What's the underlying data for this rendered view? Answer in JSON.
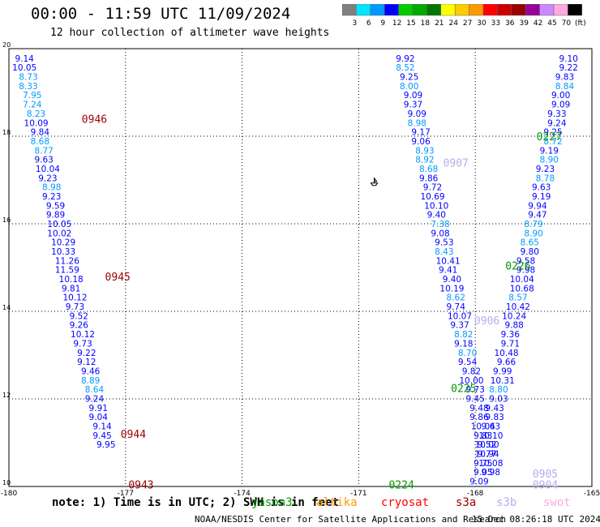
{
  "header": {
    "title": "00:00 - 11:59 UTC 11/09/2024",
    "subtitle": "12 hour collection of altimeter wave heights"
  },
  "legend": {
    "thresholds": [
      "3",
      "6",
      "9",
      "12",
      "15",
      "18",
      "21",
      "24",
      "27",
      "30",
      "33",
      "36",
      "39",
      "42",
      "45",
      "70",
      "(ft)"
    ],
    "colors": [
      "#7f7f7f",
      "#00e5ff",
      "#0099ff",
      "#0000ff",
      "#00cc00",
      "#00aa00",
      "#007700",
      "#ffff00",
      "#ffcc00",
      "#ff9900",
      "#ff0000",
      "#cc0000",
      "#990000",
      "#990099",
      "#cc88ff",
      "#ffaadd",
      "#000000"
    ]
  },
  "footer": {
    "note": "note: 1) Time is in UTC; 2) SWH is in feet",
    "satellites": [
      {
        "name": "jason3",
        "color": "#009900"
      },
      {
        "name": "altika",
        "color": "#ff9900"
      },
      {
        "name": "cryosat",
        "color": "#ff0000"
      },
      {
        "name": "s3a",
        "color": "#990000"
      },
      {
        "name": "s3b",
        "color": "#bbaaee"
      },
      {
        "name": "swot",
        "color": "#ffaadd"
      }
    ],
    "credit": "NOAA/NESDIS Center for Satellite Applications and Research",
    "timestamp": "15 Dec 08:26:18 UTC 2024"
  },
  "chart_data": {
    "type": "scatter",
    "xlim": [
      -180,
      -165
    ],
    "ylim": [
      10,
      20
    ],
    "x_ticks": [
      "-180",
      "-177",
      "-174",
      "-171",
      "-168",
      "-165"
    ],
    "y_ticks": [
      "10",
      "12",
      "14",
      "16",
      "18",
      "20"
    ],
    "grid": true,
    "pass_labels": [
      {
        "label": "0946",
        "x": -177.8,
        "y": 18.4,
        "color": "#990000"
      },
      {
        "label": "0945",
        "x": -177.2,
        "y": 14.8,
        "color": "#990000"
      },
      {
        "label": "0944",
        "x": -176.8,
        "y": 11.2,
        "color": "#990000"
      },
      {
        "label": "0943",
        "x": -176.6,
        "y": 10.05,
        "color": "#990000"
      },
      {
        "label": "0907",
        "x": -168.5,
        "y": 17.4,
        "color": "#bbaaee"
      },
      {
        "label": "0906",
        "x": -167.7,
        "y": 13.8,
        "color": "#bbaaee"
      },
      {
        "label": "0905",
        "x": -166.2,
        "y": 10.3,
        "color": "#bbaaee"
      },
      {
        "label": "0904",
        "x": -166.2,
        "y": 10.05,
        "color": "#bbaaee"
      },
      {
        "label": "0227",
        "x": -166.1,
        "y": 18.0,
        "color": "#009900"
      },
      {
        "label": "0226",
        "x": -166.9,
        "y": 15.05,
        "color": "#009900"
      },
      {
        "label": "0225",
        "x": -168.3,
        "y": 12.25,
        "color": "#009900"
      },
      {
        "label": "0224",
        "x": -169.9,
        "y": 10.05,
        "color": "#009900"
      }
    ],
    "marker": {
      "symbol": "boat",
      "x": -170.6,
      "y": 16.95
    },
    "series": [
      {
        "name": "s3a",
        "points": [
          {
            "x": -179.6,
            "y": 19.78,
            "v": 9.14
          },
          {
            "x": -179.6,
            "y": 19.57,
            "v": 10.05
          },
          {
            "x": -179.5,
            "y": 19.36,
            "v": 8.73
          },
          {
            "x": -179.5,
            "y": 19.15,
            "v": 8.33
          },
          {
            "x": -179.4,
            "y": 18.94,
            "v": 7.95
          },
          {
            "x": -179.4,
            "y": 18.73,
            "v": 7.24
          },
          {
            "x": -179.3,
            "y": 18.52,
            "v": 8.23
          },
          {
            "x": -179.3,
            "y": 18.31,
            "v": 10.09
          },
          {
            "x": -179.2,
            "y": 18.1,
            "v": 9.84
          },
          {
            "x": -179.2,
            "y": 17.89,
            "v": 8.68
          },
          {
            "x": -179.1,
            "y": 17.68,
            "v": 8.77
          },
          {
            "x": -179.1,
            "y": 17.47,
            "v": 9.63
          },
          {
            "x": -179.0,
            "y": 17.26,
            "v": 10.04
          },
          {
            "x": -179.0,
            "y": 17.05,
            "v": 9.23
          },
          {
            "x": -178.9,
            "y": 16.84,
            "v": 8.98
          },
          {
            "x": -178.9,
            "y": 16.63,
            "v": 9.23
          },
          {
            "x": -178.8,
            "y": 16.42,
            "v": 9.59
          },
          {
            "x": -178.8,
            "y": 16.21,
            "v": 9.89
          },
          {
            "x": -178.7,
            "y": 16.0,
            "v": 10.05
          },
          {
            "x": -178.7,
            "y": 15.79,
            "v": 10.02
          },
          {
            "x": -178.6,
            "y": 15.58,
            "v": 10.29
          },
          {
            "x": -178.6,
            "y": 15.37,
            "v": 10.33
          },
          {
            "x": -178.5,
            "y": 15.16,
            "v": 11.26
          },
          {
            "x": -178.5,
            "y": 14.95,
            "v": 11.59
          },
          {
            "x": -178.4,
            "y": 14.74,
            "v": 10.18
          },
          {
            "x": -178.4,
            "y": 14.53,
            "v": 9.81
          },
          {
            "x": -178.3,
            "y": 14.32,
            "v": 10.12
          },
          {
            "x": -178.3,
            "y": 14.11,
            "v": 9.73
          },
          {
            "x": -178.2,
            "y": 13.9,
            "v": 9.52
          },
          {
            "x": -178.2,
            "y": 13.69,
            "v": 9.26
          },
          {
            "x": -178.1,
            "y": 13.48,
            "v": 10.12
          },
          {
            "x": -178.1,
            "y": 13.27,
            "v": 9.73
          },
          {
            "x": -178.0,
            "y": 13.06,
            "v": 9.22
          },
          {
            "x": -178.0,
            "y": 12.85,
            "v": 9.12
          },
          {
            "x": -177.9,
            "y": 12.64,
            "v": 9.46
          },
          {
            "x": -177.9,
            "y": 12.43,
            "v": 8.89
          },
          {
            "x": -177.8,
            "y": 12.22,
            "v": 8.64
          },
          {
            "x": -177.8,
            "y": 12.01,
            "v": 9.24
          },
          {
            "x": -177.7,
            "y": 11.8,
            "v": 9.91
          },
          {
            "x": -177.7,
            "y": 11.59,
            "v": 9.04
          },
          {
            "x": -177.6,
            "y": 11.38,
            "v": 9.14
          },
          {
            "x": -177.6,
            "y": 11.17,
            "v": 9.45
          },
          {
            "x": -177.5,
            "y": 10.96,
            "v": 9.95
          }
        ]
      },
      {
        "name": "s3b",
        "points": [
          {
            "x": -169.8,
            "y": 19.78,
            "v": 9.92
          },
          {
            "x": -169.8,
            "y": 19.57,
            "v": 8.52
          },
          {
            "x": -169.7,
            "y": 19.36,
            "v": 9.25
          },
          {
            "x": -169.7,
            "y": 19.15,
            "v": 8.0
          },
          {
            "x": -169.6,
            "y": 18.94,
            "v": 9.09
          },
          {
            "x": -169.6,
            "y": 18.73,
            "v": 9.37
          },
          {
            "x": -169.5,
            "y": 18.52,
            "v": 9.09
          },
          {
            "x": -169.5,
            "y": 18.31,
            "v": 8.98
          },
          {
            "x": -169.4,
            "y": 18.1,
            "v": 9.17
          },
          {
            "x": -169.4,
            "y": 17.89,
            "v": 9.06
          },
          {
            "x": -169.3,
            "y": 17.68,
            "v": 8.93
          },
          {
            "x": -169.3,
            "y": 17.47,
            "v": 8.92
          },
          {
            "x": -169.2,
            "y": 17.26,
            "v": 8.68
          },
          {
            "x": -169.2,
            "y": 17.05,
            "v": 9.86
          },
          {
            "x": -169.1,
            "y": 16.84,
            "v": 9.72
          },
          {
            "x": -169.1,
            "y": 16.63,
            "v": 10.69
          },
          {
            "x": -169.0,
            "y": 16.42,
            "v": 10.1
          },
          {
            "x": -169.0,
            "y": 16.21,
            "v": 9.4
          },
          {
            "x": -168.9,
            "y": 16.0,
            "v": 7.38
          },
          {
            "x": -168.9,
            "y": 15.79,
            "v": 9.08
          },
          {
            "x": -168.8,
            "y": 15.58,
            "v": 9.53
          },
          {
            "x": -168.8,
            "y": 15.37,
            "v": 8.43
          },
          {
            "x": -168.7,
            "y": 15.16,
            "v": 10.41
          },
          {
            "x": -168.7,
            "y": 14.95,
            "v": 9.41
          },
          {
            "x": -168.6,
            "y": 14.74,
            "v": 9.4
          },
          {
            "x": -168.6,
            "y": 14.53,
            "v": 10.19
          },
          {
            "x": -168.5,
            "y": 14.32,
            "v": 8.62
          },
          {
            "x": -168.5,
            "y": 14.11,
            "v": 9.74
          },
          {
            "x": -168.4,
            "y": 13.9,
            "v": 10.07
          },
          {
            "x": -168.4,
            "y": 13.69,
            "v": 9.37
          },
          {
            "x": -168.3,
            "y": 13.48,
            "v": 8.82
          },
          {
            "x": -168.3,
            "y": 13.27,
            "v": 9.18
          },
          {
            "x": -168.2,
            "y": 13.06,
            "v": 8.7
          },
          {
            "x": -168.2,
            "y": 12.85,
            "v": 9.54
          },
          {
            "x": -168.1,
            "y": 12.64,
            "v": 9.82
          },
          {
            "x": -168.1,
            "y": 12.43,
            "v": 10.0
          },
          {
            "x": -168.0,
            "y": 12.22,
            "v": 9.73
          },
          {
            "x": -168.0,
            "y": 12.01,
            "v": 9.45
          },
          {
            "x": -167.9,
            "y": 11.8,
            "v": 9.48
          },
          {
            "x": -167.9,
            "y": 11.59,
            "v": 9.86
          },
          {
            "x": -167.8,
            "y": 11.38,
            "v": 10.04
          },
          {
            "x": -167.8,
            "y": 11.17,
            "v": 9.83
          },
          {
            "x": -167.7,
            "y": 10.96,
            "v": 10.0
          },
          {
            "x": -167.7,
            "y": 10.75,
            "v": 9.77
          },
          {
            "x": -167.6,
            "y": 10.54,
            "v": 10.08
          },
          {
            "x": -167.6,
            "y": 10.33,
            "v": 9.98
          }
        ]
      },
      {
        "name": "jason3",
        "points": [
          {
            "x": -165.6,
            "y": 19.78,
            "v": 9.1
          },
          {
            "x": -165.6,
            "y": 19.57,
            "v": 9.22
          },
          {
            "x": -165.7,
            "y": 19.36,
            "v": 9.83
          },
          {
            "x": -165.7,
            "y": 19.15,
            "v": 8.84
          },
          {
            "x": -165.8,
            "y": 18.94,
            "v": 9.0
          },
          {
            "x": -165.8,
            "y": 18.73,
            "v": 9.09
          },
          {
            "x": -165.9,
            "y": 18.52,
            "v": 9.33
          },
          {
            "x": -165.9,
            "y": 18.31,
            "v": 9.24
          },
          {
            "x": -166.0,
            "y": 18.1,
            "v": 9.25
          },
          {
            "x": -166.0,
            "y": 17.89,
            "v": 8.72
          },
          {
            "x": -166.1,
            "y": 17.68,
            "v": 9.19
          },
          {
            "x": -166.1,
            "y": 17.47,
            "v": 8.9
          },
          {
            "x": -166.2,
            "y": 17.26,
            "v": 9.23
          },
          {
            "x": -166.2,
            "y": 17.05,
            "v": 8.78
          },
          {
            "x": -166.3,
            "y": 16.84,
            "v": 9.63
          },
          {
            "x": -166.3,
            "y": 16.63,
            "v": 9.19
          },
          {
            "x": -166.4,
            "y": 16.42,
            "v": 9.94
          },
          {
            "x": -166.4,
            "y": 16.21,
            "v": 9.47
          },
          {
            "x": -166.5,
            "y": 16.0,
            "v": 8.79
          },
          {
            "x": -166.5,
            "y": 15.79,
            "v": 8.9
          },
          {
            "x": -166.6,
            "y": 15.58,
            "v": 8.65
          },
          {
            "x": -166.6,
            "y": 15.37,
            "v": 9.8
          },
          {
            "x": -166.7,
            "y": 15.16,
            "v": 9.58
          },
          {
            "x": -166.7,
            "y": 14.95,
            "v": 9.98
          },
          {
            "x": -166.8,
            "y": 14.74,
            "v": 10.04
          },
          {
            "x": -166.8,
            "y": 14.53,
            "v": 10.68
          },
          {
            "x": -166.9,
            "y": 14.32,
            "v": 8.57
          },
          {
            "x": -166.9,
            "y": 14.11,
            "v": 10.42
          },
          {
            "x": -167.0,
            "y": 13.9,
            "v": 10.24
          },
          {
            "x": -167.0,
            "y": 13.69,
            "v": 9.88
          },
          {
            "x": -167.1,
            "y": 13.48,
            "v": 9.36
          },
          {
            "x": -167.1,
            "y": 13.27,
            "v": 9.71
          },
          {
            "x": -167.2,
            "y": 13.06,
            "v": 10.48
          },
          {
            "x": -167.2,
            "y": 12.85,
            "v": 9.66
          },
          {
            "x": -167.3,
            "y": 12.64,
            "v": 9.99
          },
          {
            "x": -167.3,
            "y": 12.43,
            "v": 10.31
          },
          {
            "x": -167.4,
            "y": 12.22,
            "v": 8.8
          },
          {
            "x": -167.4,
            "y": 12.01,
            "v": 9.03
          },
          {
            "x": -167.5,
            "y": 11.8,
            "v": 9.43
          },
          {
            "x": -167.5,
            "y": 11.59,
            "v": 9.83
          },
          {
            "x": -167.6,
            "y": 11.38,
            "v": 9.63
          },
          {
            "x": -167.6,
            "y": 11.17,
            "v": 10.1
          },
          {
            "x": -167.7,
            "y": 10.96,
            "v": 9.52
          },
          {
            "x": -167.7,
            "y": 10.75,
            "v": 10.94
          },
          {
            "x": -167.8,
            "y": 10.54,
            "v": 9.75
          },
          {
            "x": -167.8,
            "y": 10.33,
            "v": 9.05
          },
          {
            "x": -167.9,
            "y": 10.12,
            "v": 9.09
          }
        ]
      }
    ]
  }
}
